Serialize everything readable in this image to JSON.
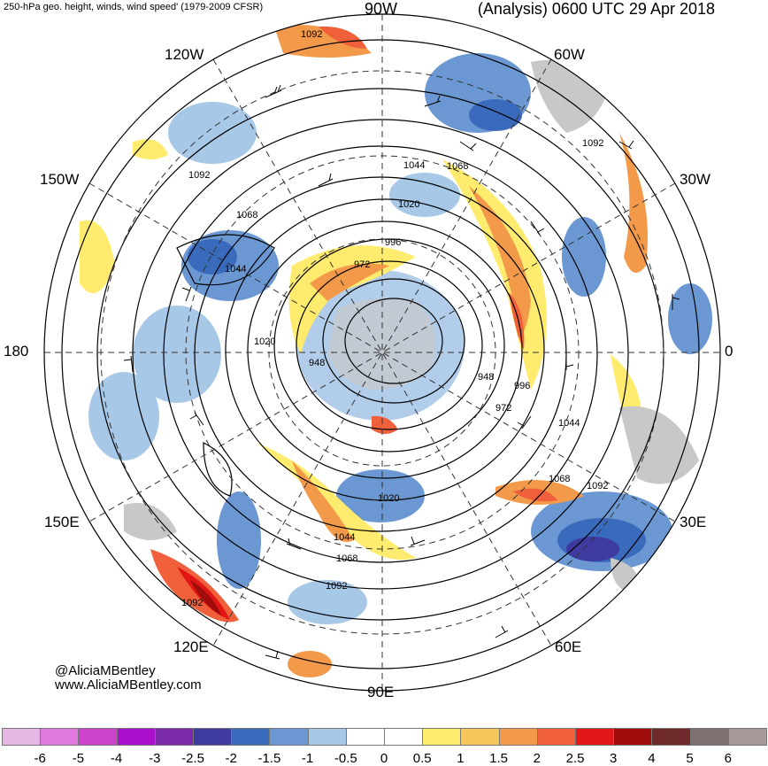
{
  "header": {
    "title_left": "250-hPa geo. height, winds, wind speed' (1979-2009 CFSR)",
    "title_mid": "90W",
    "title_right": "(Analysis) 0600 UTC 29 Apr 2018"
  },
  "longitude_labels": {
    "w120": "120W",
    "w60": "60W",
    "w150": "150W",
    "w30": "30W",
    "lon180": "180",
    "lon0": "0",
    "e150": "150E",
    "e30": "30E",
    "e120": "120E",
    "e60": "60E",
    "e90": "90E"
  },
  "contour_labels": {
    "c1092a": "1092",
    "c1092b": "1092",
    "c1092c": "1092",
    "c1092d": "1092",
    "c1092e": "1092",
    "c1092f": "1092",
    "c1068a": "1068",
    "c1068b": "1068",
    "c1068c": "1068",
    "c1068d": "1068",
    "c1044a": "1044",
    "c1044b": "1044",
    "c1044c": "1044",
    "c1044d": "1044",
    "c1020a": "1020",
    "c1020b": "1020",
    "c1020c": "1020",
    "c996a": "996",
    "c996b": "996",
    "c972a": "972",
    "c972b": "972",
    "c948a": "948",
    "c948b": "948"
  },
  "credits": {
    "twitter": "@AliciaMBentley",
    "website": "www.AliciaMBentley.com"
  },
  "colorbar": {
    "colors": [
      "#e6b8e6",
      "#e07ae0",
      "#cc44cc",
      "#aa10cc",
      "#7a2aa8",
      "#3e3aa0",
      "#3a6abb",
      "#6b98d2",
      "#a8c8e8",
      "#ffffff",
      "#ffffff",
      "#ffec6e",
      "#f6c65a",
      "#f39a4a",
      "#f0603a",
      "#e21616",
      "#a00c0c",
      "#6e2a2a",
      "#7e7070",
      "#a89a9a"
    ],
    "ticks": [
      "-6",
      "-5",
      "-4",
      "-3",
      "-2.5",
      "-2",
      "-1.5",
      "-1",
      "-0.5",
      "0",
      "0.5",
      "1",
      "1.5",
      "2",
      "2.5",
      "3",
      "4",
      "5",
      "6"
    ]
  }
}
